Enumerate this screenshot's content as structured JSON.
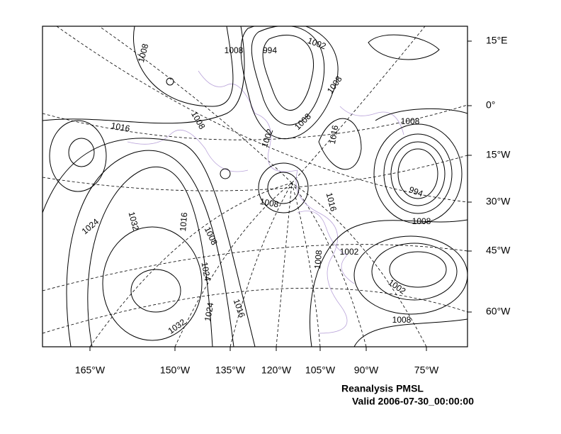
{
  "axes": {
    "right_labels": [
      "15°E",
      "0°",
      "15°W",
      "30°W",
      "45°W",
      "60°W"
    ],
    "bottom_labels": [
      "165°W",
      "150°W",
      "135°W",
      "120°W",
      "105°W",
      "90°W",
      "75°W"
    ]
  },
  "contour_labels": [
    "1008",
    "1008",
    "994",
    "1002",
    "1008",
    "1008",
    "1016",
    "1002",
    "1008",
    "1016",
    "1008",
    "994",
    "1008",
    "1016",
    "1024",
    "1032",
    "1016",
    "1008",
    "1008",
    "1002",
    "1008",
    "1024",
    "1002",
    "1024",
    "1016",
    "1032",
    "1008"
  ],
  "title": "Reanalysis PMSL",
  "subtitle": "Valid 2006-07-30_00:00:00"
}
